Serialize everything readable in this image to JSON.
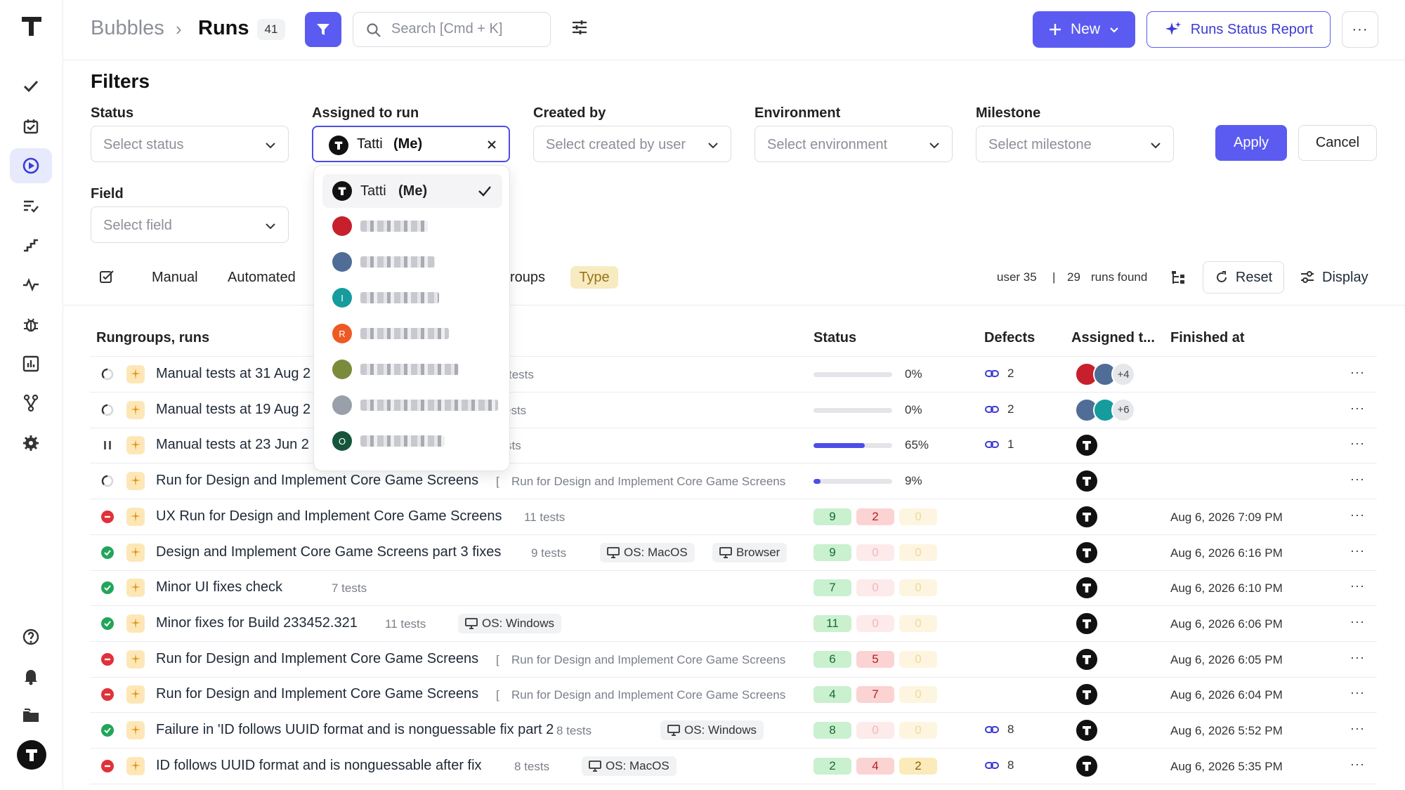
{
  "breadcrumb": {
    "project": "Bubbles",
    "separator": "›",
    "page": "Runs",
    "count": "41"
  },
  "search": {
    "placeholder": "Search [Cmd + K]"
  },
  "header": {
    "new_label": "New",
    "report_label": "Runs Status Report",
    "more_label": "···"
  },
  "filters": {
    "title": "Filters",
    "status": {
      "label": "Status",
      "placeholder": "Select status"
    },
    "assigned": {
      "label": "Assigned to run",
      "value_name": "Tatti",
      "value_me": "(Me)"
    },
    "created_by": {
      "label": "Created by",
      "placeholder": "Select created by user"
    },
    "environment": {
      "label": "Environment",
      "placeholder": "Select environment"
    },
    "milestone": {
      "label": "Milestone",
      "placeholder": "Select milestone"
    },
    "field": {
      "label": "Field",
      "placeholder": "Select field"
    },
    "apply_label": "Apply",
    "cancel_label": "Cancel"
  },
  "assignee_dropdown": {
    "selected": {
      "name": "Tatti",
      "me": "(Me)",
      "avatar": "T"
    },
    "others": [
      {
        "avatar_color": "#c81f2c",
        "initial": ""
      },
      {
        "avatar_color": "#4f6d96",
        "initial": ""
      },
      {
        "avatar_color": "#169c9c",
        "initial": "I"
      },
      {
        "avatar_color": "#ee5a24",
        "initial": "R"
      },
      {
        "avatar_color": "#7a8b3b",
        "initial": ""
      },
      {
        "avatar_color": "#9aa0aa",
        "initial": ""
      },
      {
        "avatar_color": "#15553c",
        "initial": "O"
      }
    ]
  },
  "tabs": {
    "manual": "Manual",
    "automated": "Automated",
    "rungroups_partial": "roups",
    "type": "Type"
  },
  "summary": {
    "user": "user 35",
    "divider": "|",
    "count": "29",
    "count_label": "runs found"
  },
  "toolbar": {
    "reset_label": "Reset",
    "display_label": "Display"
  },
  "table": {
    "headers": {
      "name": "Rungroups, runs",
      "status": "Status",
      "defects": "Defects",
      "assigned": "Assigned t...",
      "finished": "Finished at"
    },
    "rows": [
      {
        "state": "in-progress",
        "title": "Manual tests at 31 Aug 2",
        "sub": "tests",
        "progress": 0,
        "progress_label": "0%",
        "defects": "2",
        "assignees": [
          "#c81f2c",
          "#4f6d96"
        ],
        "extra": "+4",
        "finished": ""
      },
      {
        "state": "in-progress",
        "title": "Manual tests at 19 Aug 2",
        "sub": "ests",
        "progress": 0,
        "progress_label": "0%",
        "defects": "2",
        "assignees": [
          "#4f6d96",
          "#169c9c"
        ],
        "extra": "+6",
        "finished": ""
      },
      {
        "state": "paused",
        "title": "Manual tests at 23 Jun 2",
        "sub": "sts",
        "progress": 65,
        "progress_label": "65%",
        "defects": "1",
        "assignees": [
          "T"
        ],
        "extra": "",
        "finished": ""
      },
      {
        "state": "in-progress",
        "title": "Run for Design and Implement Core Game Screens",
        "sub": "Run for Design and Implement Core Game Screens",
        "bracket": "[",
        "progress": 9,
        "progress_label": "9%",
        "defects": "",
        "assignees": [
          "T"
        ],
        "extra": "",
        "finished": ""
      },
      {
        "state": "failed",
        "title": "UX Run for Design and Implement Core Game Screens",
        "sub": "11 tests",
        "passed": "9",
        "failed_n": "2",
        "skipped": "0",
        "defects": "",
        "assignees": [
          "T"
        ],
        "finished": "Aug 6, 2026 7:09 PM"
      },
      {
        "state": "passed",
        "title": "Design and Implement Core Game Screens part 3 fixes",
        "sub": "9 tests",
        "env": [
          {
            "label": "OS: MacOS"
          },
          {
            "label": "Browser"
          }
        ],
        "passed": "9",
        "failed_n": "0",
        "skipped": "0",
        "defects": "",
        "assignees": [
          "T"
        ],
        "finished": "Aug 6, 2026 6:16 PM"
      },
      {
        "state": "passed",
        "title": "Minor UI fixes check",
        "sub": "7 tests",
        "passed": "7",
        "failed_n": "0",
        "skipped": "0",
        "defects": "",
        "assignees": [
          "T"
        ],
        "finished": "Aug 6, 2026 6:10 PM"
      },
      {
        "state": "passed",
        "title": "Minor fixes for Build 233452.321",
        "sub": "11 tests",
        "env": [
          {
            "label": "OS: Windows"
          }
        ],
        "passed": "11",
        "failed_n": "0",
        "skipped": "0",
        "defects": "",
        "assignees": [
          "T"
        ],
        "finished": "Aug 6, 2026 6:06 PM"
      },
      {
        "state": "failed",
        "title": "Run for Design and Implement Core Game Screens",
        "sub": "Run for Design and Implement Core Game Screens",
        "bracket": "[",
        "passed": "6",
        "failed_n": "5",
        "skipped": "0",
        "defects": "",
        "assignees": [
          "T"
        ],
        "finished": "Aug 6, 2026 6:05 PM"
      },
      {
        "state": "failed",
        "title": "Run for Design and Implement Core Game Screens",
        "sub": "Run for Design and Implement Core Game Screens",
        "bracket": "[",
        "passed": "4",
        "failed_n": "7",
        "skipped": "0",
        "defects": "",
        "assignees": [
          "T"
        ],
        "finished": "Aug 6, 2026 6:04 PM"
      },
      {
        "state": "passed",
        "title": "Failure in 'ID follows UUID format and is nonguessable fix part 2",
        "sub": "8 tests",
        "env": [
          {
            "label": "OS: Windows"
          }
        ],
        "passed": "8",
        "failed_n": "0",
        "skipped": "0",
        "defects": "8",
        "assignees": [
          "T"
        ],
        "finished": "Aug 6, 2026 5:52 PM"
      },
      {
        "state": "failed",
        "title": "ID follows UUID format and is nonguessable after fix",
        "sub": "8 tests",
        "env": [
          {
            "label": "OS: MacOS"
          }
        ],
        "passed": "2",
        "failed_n": "4",
        "skipped": "2",
        "defects": "8",
        "assignees": [
          "T"
        ],
        "finished": "Aug 6, 2026 5:35 PM"
      }
    ]
  },
  "colors": {
    "accent": "#5b5bf2",
    "passed": "#22a55b",
    "failed": "#e0313a"
  }
}
